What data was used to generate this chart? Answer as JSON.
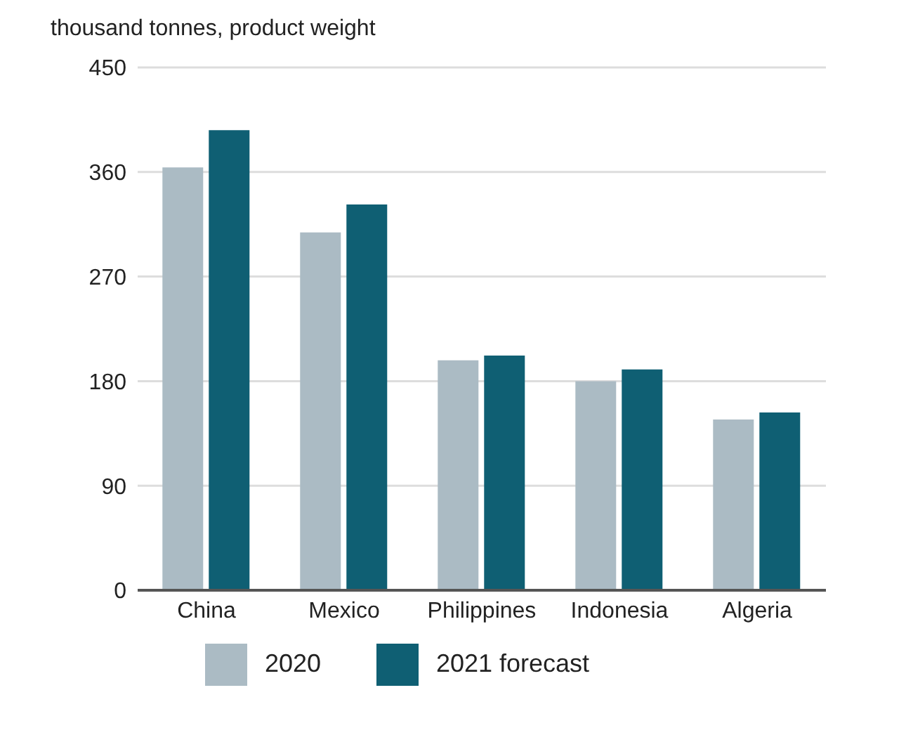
{
  "chart_data": {
    "type": "bar",
    "ylabel": "thousand tonnes, product weight",
    "categories": [
      "China",
      "Mexico",
      "Philippines",
      "Indonesia",
      "Algeria"
    ],
    "series": [
      {
        "name": "2020",
        "color": "#abbbc4",
        "values": [
          364,
          308,
          198,
          180,
          147
        ]
      },
      {
        "name": "2021 forecast",
        "color": "#0f5f73",
        "values": [
          396,
          332,
          202,
          190,
          153
        ]
      }
    ],
    "ylim": [
      0,
      450
    ],
    "yticks": [
      0,
      90,
      180,
      270,
      360,
      450
    ],
    "grid": "y",
    "legend": "bottom"
  }
}
